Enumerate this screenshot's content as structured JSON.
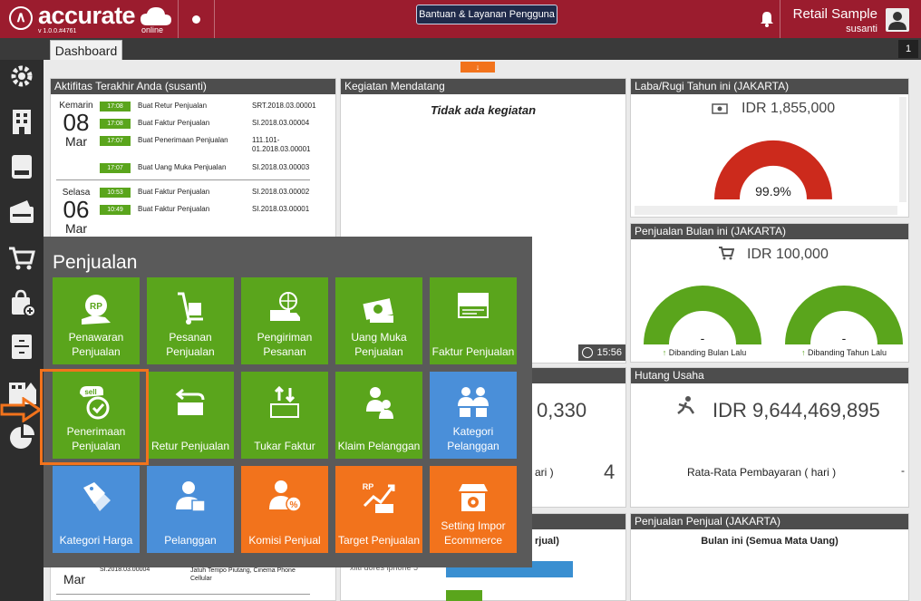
{
  "app": {
    "logo_text": "accurate",
    "logo_sub": "online",
    "version": "v 1.0.0.#4761",
    "help_button": "Bantuan & Layanan Pengguna",
    "company": "Retail Sample",
    "user": "susanti",
    "page_counter": "1",
    "brand_color": "#9b1c2e"
  },
  "tabs": [
    {
      "label": "Dashboard"
    }
  ],
  "sidebar": {
    "icons": [
      "gear-icon",
      "building-icon",
      "book-icon",
      "wallet-icon",
      "cart-icon",
      "bag-icon",
      "cabinet-icon",
      "factory-icon",
      "pie-chart-icon"
    ]
  },
  "activity": {
    "title": "Aktifitas Terakhir Anda (susanti)",
    "groups": [
      {
        "day": "Kemarin",
        "date": "08",
        "month": "Mar",
        "rows": [
          {
            "time": "17:08",
            "desc": "Buat Retur Penjualan",
            "ref": "SRT.2018.03.00001"
          },
          {
            "time": "17:08",
            "desc": "Buat Faktur Penjualan",
            "ref": "SI.2018.03.00004"
          },
          {
            "time": "17:07",
            "desc": "Buat Penerimaan Penjualan",
            "ref": "111.101-01.2018.03.00001"
          },
          {
            "time": "17:07",
            "desc": "Buat Uang Muka Penjualan",
            "ref": "SI.2018.03.00003"
          }
        ]
      },
      {
        "day": "Selasa",
        "date": "06",
        "month": "Mar",
        "rows": [
          {
            "time": "10:53",
            "desc": "Buat Faktur Penjualan",
            "ref": "SI.2018.03.00002"
          },
          {
            "time": "10:49",
            "desc": "Buat Faktur Penjualan",
            "ref": "SI.2018.03.00001"
          }
        ]
      }
    ],
    "bottom_month": "Mar",
    "bottom_ref": "SI.2018.03.00004",
    "bottom_desc": "Jatuh Tempo Piutang, Cinema Phone Cellular"
  },
  "upcoming": {
    "title": "Kegiatan Mendatang",
    "empty_text": "Tidak ada kegiatan",
    "clock": "15:56",
    "bottom_text": "xiiti dores iphone 5"
  },
  "profit": {
    "title": "Laba/Rugi Tahun ini (JAKARTA)",
    "value": "IDR 1,855,000",
    "percent_label": "99.9%",
    "gauge_fraction": 0.999,
    "gauge_color": "#cc2a1c"
  },
  "sales_month": {
    "title": "Penjualan Bulan ini (JAKARTA)",
    "value": "IDR 100,000",
    "gauge1_value": "-",
    "gauge1_label": "Dibanding Bulan Lalu",
    "gauge2_value": "-",
    "gauge2_label": "Dibanding Tahun Lalu",
    "gauge_color": "#5aa51c"
  },
  "receivable": {
    "value_partial": "0,330",
    "label_partial": "ari )",
    "count": "4",
    "bottom_title_partial": "rjual)"
  },
  "payable": {
    "title": "Hutang Usaha",
    "value": "IDR 9,644,469,895",
    "label": "Rata-Rata Pembayaran ( hari )",
    "value2": "-"
  },
  "sales_person": {
    "title": "Penjualan Penjual (JAKARTA)",
    "subtitle": "Bulan ini (Semua Mata Uang)"
  },
  "menu": {
    "title": "Penjualan",
    "tiles": [
      {
        "label": "Penawaran Penjualan",
        "color": "green",
        "icon": "quote-icon"
      },
      {
        "label": "Pesanan Penjualan",
        "color": "green",
        "icon": "hand-truck-icon"
      },
      {
        "label": "Pengiriman Pesanan",
        "color": "green",
        "icon": "delivery-truck-icon"
      },
      {
        "label": "Uang Muka Penjualan",
        "color": "green",
        "icon": "cash-icon"
      },
      {
        "label": "Faktur Penjualan",
        "color": "green",
        "icon": "invoice-icon"
      },
      {
        "label": "Penerimaan Penjualan",
        "color": "green",
        "icon": "sell-icon"
      },
      {
        "label": "Retur Penjualan",
        "color": "green",
        "icon": "return-icon"
      },
      {
        "label": "Tukar Faktur",
        "color": "green",
        "icon": "exchange-invoice-icon"
      },
      {
        "label": "Klaim Pelanggan",
        "color": "green",
        "icon": "claim-icon"
      },
      {
        "label": "Kategori Pelanggan",
        "color": "blue",
        "icon": "customer-category-icon"
      },
      {
        "label": "Kategori Harga",
        "color": "blue",
        "icon": "price-tag-icon"
      },
      {
        "label": "Pelanggan",
        "color": "blue",
        "icon": "customer-icon"
      },
      {
        "label": "Komisi Penjual",
        "color": "orange",
        "icon": "commission-icon"
      },
      {
        "label": "Target Penjualan",
        "color": "orange",
        "icon": "target-icon"
      },
      {
        "label": "Setting Impor Ecommerce",
        "color": "orange",
        "icon": "ecommerce-icon"
      }
    ],
    "highlight_color": "#f2731c"
  }
}
